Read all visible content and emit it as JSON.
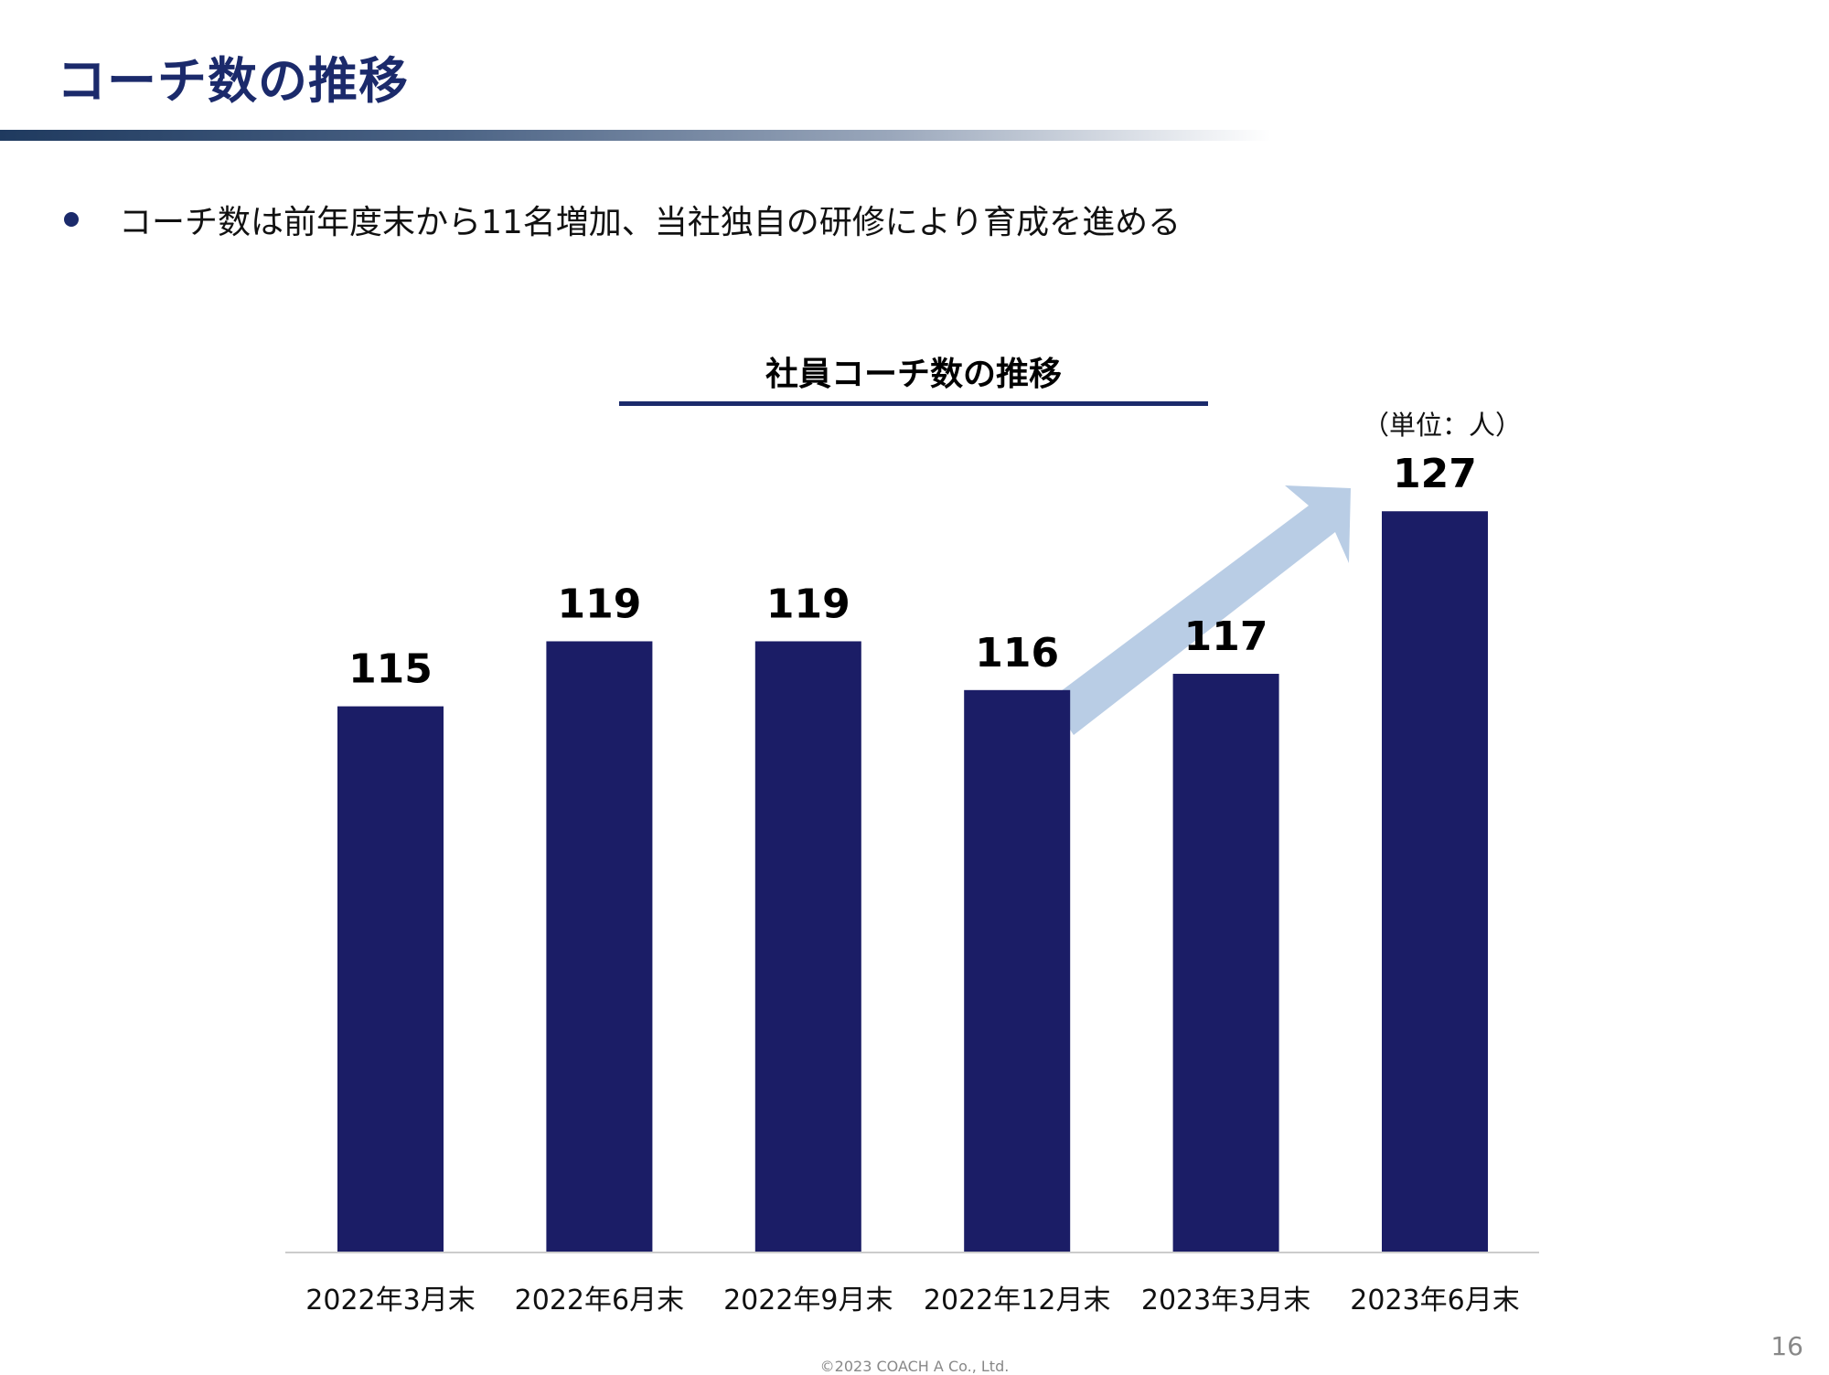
{
  "page": {
    "title": "コーチ数の推移",
    "bullet": "コーチ数は前年度末から11名増加、当社独自の研修により育成を進める",
    "page_number": "16",
    "copyright": "©2023  COACH A Co., Ltd."
  },
  "colors": {
    "bar": "#1b1d66",
    "arrow": "#b9cde5",
    "title": "#1b2a6b",
    "axis": "#cccccc"
  },
  "chart_data": {
    "type": "bar",
    "title": "社員コーチ数の推移",
    "unit_label": "（単位：人）",
    "categories": [
      "2022年3月末",
      "2022年6月末",
      "2022年9月末",
      "2022年12月末",
      "2023年3月末",
      "2023年6月末"
    ],
    "values": [
      115,
      119,
      119,
      116,
      117,
      127
    ],
    "data_labels": [
      "115",
      "119",
      "119",
      "116",
      "117",
      "127"
    ],
    "ylim": [
      100,
      134
    ],
    "grid": false,
    "legend": "none",
    "annotation": "upward-trend-arrow"
  }
}
